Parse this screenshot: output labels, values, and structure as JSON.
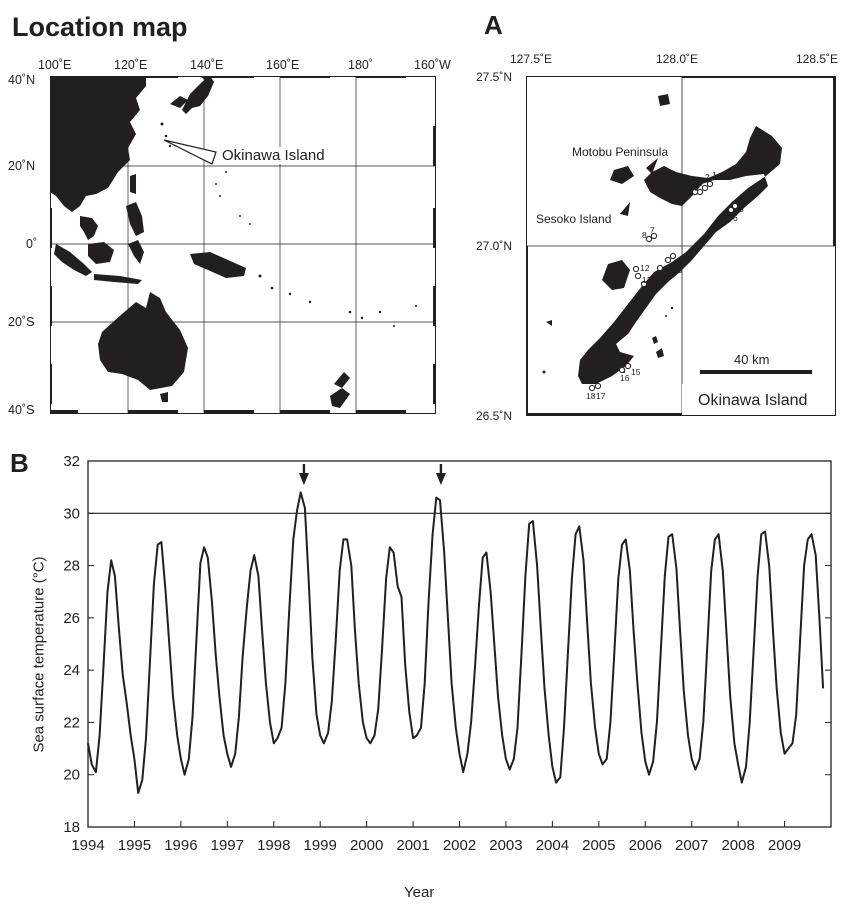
{
  "location_map": {
    "title": "Location map",
    "lon_labels": [
      "100˚E",
      "120˚E",
      "140˚E",
      "160˚E",
      "180˚",
      "160˚W"
    ],
    "lat_labels": [
      "40˚N",
      "20˚N",
      "0˚",
      "20˚S",
      "40˚S"
    ],
    "callout": "Okinawa Island"
  },
  "panel_a": {
    "letter": "A",
    "lon_labels": [
      "127.5˚E",
      "128.0˚E",
      "128.5˚E"
    ],
    "lat_labels": [
      "27.5˚N",
      "27.0˚N",
      "26.5˚N"
    ],
    "motobu_label": "Motobu Peninsula",
    "sesoko_label": "Sesoko Island",
    "scale_label": "40 km",
    "island_label": "Okinawa Island",
    "sites": [
      "1",
      "2",
      "3",
      "4",
      "5",
      "6",
      "7",
      "8",
      "9",
      "10",
      "11",
      "12",
      "13",
      "14",
      "15",
      "16",
      "17",
      "18"
    ]
  },
  "panel_b": {
    "letter": "B"
  },
  "chart_data": {
    "type": "line",
    "xlabel": "Year",
    "ylabel": "Sea surface temperature (°C)",
    "xlim": [
      1994,
      2010
    ],
    "ylim": [
      18,
      32
    ],
    "x_ticks": [
      "1994",
      "1995",
      "1996",
      "1997",
      "1998",
      "1999",
      "2000",
      "2001",
      "2002",
      "2003",
      "2004",
      "2005",
      "2006",
      "2007",
      "2008",
      "2009"
    ],
    "y_ticks": [
      "18",
      "20",
      "22",
      "24",
      "26",
      "28",
      "30",
      "32"
    ],
    "threshold_line": 30,
    "arrow_years": [
      1998.65,
      2001.6
    ],
    "x": [
      1994.0,
      1994.08,
      1994.17,
      1994.25,
      1994.33,
      1994.42,
      1994.5,
      1994.58,
      1994.67,
      1994.75,
      1994.83,
      1994.92,
      1995.0,
      1995.08,
      1995.17,
      1995.25,
      1995.33,
      1995.42,
      1995.5,
      1995.58,
      1995.67,
      1995.75,
      1995.83,
      1995.92,
      1996.0,
      1996.08,
      1996.17,
      1996.25,
      1996.33,
      1996.42,
      1996.5,
      1996.58,
      1996.67,
      1996.75,
      1996.83,
      1996.92,
      1997.0,
      1997.08,
      1997.17,
      1997.25,
      1997.33,
      1997.42,
      1997.5,
      1997.58,
      1997.67,
      1997.75,
      1997.83,
      1997.92,
      1998.0,
      1998.08,
      1998.17,
      1998.25,
      1998.33,
      1998.42,
      1998.5,
      1998.58,
      1998.67,
      1998.75,
      1998.83,
      1998.92,
      1999.0,
      1999.08,
      1999.17,
      1999.25,
      1999.33,
      1999.42,
      1999.5,
      1999.58,
      1999.67,
      1999.75,
      1999.83,
      1999.92,
      2000.0,
      2000.08,
      2000.17,
      2000.25,
      2000.33,
      2000.42,
      2000.5,
      2000.58,
      2000.67,
      2000.75,
      2000.83,
      2000.92,
      2001.0,
      2001.08,
      2001.17,
      2001.25,
      2001.33,
      2001.42,
      2001.5,
      2001.58,
      2001.67,
      2001.75,
      2001.83,
      2001.92,
      2002.0,
      2002.08,
      2002.17,
      2002.25,
      2002.33,
      2002.42,
      2002.5,
      2002.58,
      2002.67,
      2002.75,
      2002.83,
      2002.92,
      2003.0,
      2003.08,
      2003.17,
      2003.25,
      2003.33,
      2003.42,
      2003.5,
      2003.58,
      2003.67,
      2003.75,
      2003.83,
      2003.92,
      2004.0,
      2004.08,
      2004.17,
      2004.25,
      2004.33,
      2004.42,
      2004.5,
      2004.58,
      2004.67,
      2004.75,
      2004.83,
      2004.92,
      2005.0,
      2005.08,
      2005.17,
      2005.25,
      2005.33,
      2005.42,
      2005.5,
      2005.58,
      2005.67,
      2005.75,
      2005.83,
      2005.92,
      2006.0,
      2006.08,
      2006.17,
      2006.25,
      2006.33,
      2006.42,
      2006.5,
      2006.58,
      2006.67,
      2006.75,
      2006.83,
      2006.92,
      2007.0,
      2007.08,
      2007.17,
      2007.25,
      2007.33,
      2007.42,
      2007.5,
      2007.58,
      2007.67,
      2007.75,
      2007.83,
      2007.92,
      2008.0,
      2008.08,
      2008.17,
      2008.25,
      2008.33,
      2008.42,
      2008.5,
      2008.58,
      2008.67,
      2008.75,
      2008.83,
      2008.92,
      2009.0,
      2009.08,
      2009.17,
      2009.25,
      2009.33,
      2009.42,
      2009.5,
      2009.58,
      2009.67,
      2009.75,
      2009.83
    ],
    "series": [
      {
        "values": [
          21.2,
          20.4,
          20.1,
          21.5,
          24.0,
          27.0,
          28.2,
          27.6,
          25.5,
          23.8,
          22.8,
          21.5,
          20.6,
          19.3,
          19.8,
          21.4,
          24.2,
          27.3,
          28.8,
          28.9,
          27.0,
          25.0,
          23.0,
          21.5,
          20.6,
          20.0,
          20.6,
          22.2,
          25.0,
          28.1,
          28.7,
          28.3,
          26.6,
          24.6,
          23.0,
          21.5,
          20.8,
          20.3,
          20.8,
          22.2,
          24.5,
          26.4,
          27.8,
          28.4,
          27.6,
          25.5,
          23.5,
          22.0,
          21.2,
          21.4,
          21.8,
          23.5,
          26.2,
          29.0,
          30.1,
          30.8,
          30.2,
          27.5,
          24.5,
          22.3,
          21.5,
          21.2,
          21.6,
          22.8,
          25.0,
          27.8,
          29.0,
          29.0,
          28.0,
          25.5,
          23.5,
          22.0,
          21.4,
          21.2,
          21.5,
          22.5,
          24.7,
          27.5,
          28.7,
          28.5,
          27.2,
          26.8,
          24.2,
          22.4,
          21.4,
          21.5,
          21.8,
          23.5,
          26.5,
          29.2,
          30.6,
          30.5,
          28.5,
          26.0,
          23.5,
          21.8,
          20.8,
          20.1,
          20.8,
          22.0,
          24.0,
          26.5,
          28.3,
          28.5,
          27.0,
          25.0,
          23.0,
          21.5,
          20.6,
          20.2,
          20.6,
          21.8,
          24.5,
          27.6,
          29.6,
          29.7,
          28.0,
          25.6,
          23.3,
          21.5,
          20.3,
          19.7,
          19.9,
          21.8,
          24.5,
          27.5,
          29.2,
          29.5,
          28.2,
          25.8,
          23.5,
          21.8,
          20.8,
          20.4,
          20.6,
          22.0,
          24.5,
          27.5,
          28.8,
          29.0,
          27.8,
          25.5,
          23.5,
          21.6,
          20.5,
          20.0,
          20.5,
          22.0,
          24.6,
          27.6,
          29.1,
          29.2,
          27.9,
          25.5,
          23.2,
          21.5,
          20.6,
          20.2,
          20.6,
          22.0,
          24.7,
          27.8,
          29.0,
          29.2,
          27.8,
          25.4,
          23.0,
          21.2,
          20.4,
          19.7,
          20.3,
          22.0,
          24.6,
          27.6,
          29.2,
          29.3,
          28.0,
          25.5,
          23.3,
          21.6,
          20.8,
          21.0,
          21.2,
          22.3,
          25.0,
          28.0,
          29.0,
          29.2,
          28.4,
          26.0,
          23.3
        ]
      }
    ]
  }
}
